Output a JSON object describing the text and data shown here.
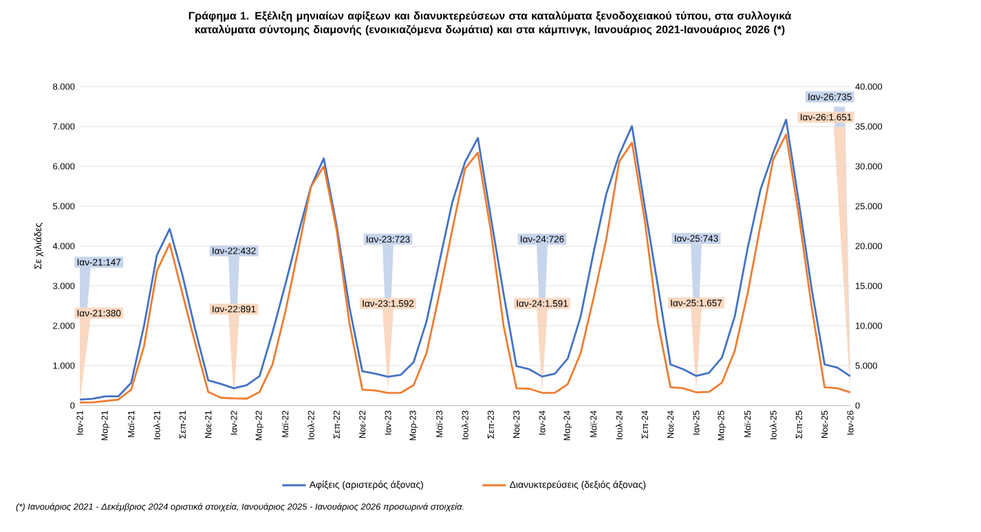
{
  "chart_data": {
    "type": "line",
    "title": "Γράφημα 1. Εξέλιξη μηνιαίων αφίξεων και διανυκτερεύσεων στα καταλύματα ξενοδοχειακού τύπου, στα συλλογικά καταλύματα σύντομης διαμονής (ενοικιαζόμενα δωμάτια) και στα κάμπινγκ, Ιανουάριος 2021-Ιανουάριος 2026 (*)",
    "ylabel": "Σε χιλιάδες",
    "categories": [
      "Ιαν-21",
      null,
      "Μαρ-21",
      null,
      "Μαϊ-21",
      null,
      "Ιουλ-21",
      null,
      "Σεπ-21",
      null,
      "Νοε-21",
      null,
      "Ιαν-22",
      null,
      "Μαρ-22",
      null,
      "Μαϊ-22",
      null,
      "Ιουλ-22",
      null,
      "Σεπ-22",
      null,
      "Νοε-22",
      null,
      "Ιαν-23",
      null,
      "Μαρ-23",
      null,
      "Μαϊ-23",
      null,
      "Ιουλ-23",
      null,
      "Σεπ-23",
      null,
      "Νοε-23",
      null,
      "Ιαν-24",
      null,
      "Μαρ-24",
      null,
      "Μαϊ-24",
      null,
      "Ιουλ-24",
      null,
      "Σεπ-24",
      null,
      "Νοε-24",
      null,
      "Ιαν-25",
      null,
      "Μαρ-25",
      null,
      "Μαϊ-25",
      null,
      "Ιουλ-25",
      null,
      "Σεπ-25",
      null,
      "Νοε-25",
      null,
      "Ιαν-26"
    ],
    "series": [
      {
        "name": "Αφίξεις (αριστερός άξονας)",
        "color": "#4472c4",
        "axis": "y",
        "values": [
          147,
          170,
          230,
          230,
          570,
          2000,
          3770,
          4430,
          3260,
          1890,
          630,
          540,
          432,
          510,
          740,
          1830,
          3030,
          4290,
          5490,
          6200,
          4510,
          2460,
          860,
          800,
          723,
          770,
          1090,
          2110,
          3600,
          5090,
          6110,
          6710,
          4740,
          2800,
          990,
          910,
          726,
          800,
          1180,
          2230,
          3830,
          5310,
          6290,
          7010,
          4970,
          3030,
          1030,
          910,
          743,
          820,
          1200,
          2230,
          3940,
          5410,
          6340,
          7170,
          5090,
          2910,
          1030,
          950,
          735
        ],
        "value_labels": [
          "Ιαν-21:147",
          null,
          null,
          null,
          null,
          null,
          null,
          null,
          null,
          null,
          null,
          null,
          "Ιαν-22:432",
          null,
          null,
          null,
          null,
          null,
          null,
          null,
          null,
          null,
          null,
          null,
          "Ιαν-23:723",
          null,
          null,
          null,
          null,
          null,
          null,
          null,
          null,
          null,
          null,
          null,
          "Ιαν-24:726",
          null,
          null,
          null,
          null,
          null,
          null,
          null,
          null,
          null,
          null,
          null,
          "Ιαν-25:743",
          null,
          null,
          null,
          null,
          null,
          null,
          null,
          null,
          null,
          null,
          null,
          "Ιαν-26:735"
        ]
      },
      {
        "name": "Διανυκτερεύσεις (δεξιός άξονας)",
        "color": "#ed7d31",
        "axis": "y2",
        "values": [
          380,
          400,
          570,
          740,
          2000,
          7430,
          16860,
          20290,
          14000,
          7710,
          1710,
          970,
          891,
          860,
          1710,
          5140,
          11710,
          19430,
          27430,
          30000,
          22000,
          10290,
          2000,
          1890,
          1592,
          1600,
          2570,
          6570,
          14000,
          22000,
          29710,
          31710,
          22000,
          10000,
          2170,
          2110,
          1591,
          1600,
          2690,
          6570,
          13430,
          20860,
          30570,
          32970,
          23140,
          10570,
          2290,
          2170,
          1657,
          1710,
          2860,
          6860,
          14000,
          22570,
          30860,
          34000,
          23710,
          12290,
          2290,
          2170,
          1651
        ],
        "value_labels": [
          "Ιαν-21:380",
          null,
          null,
          null,
          null,
          null,
          null,
          null,
          null,
          null,
          null,
          null,
          "Ιαν-22:891",
          null,
          null,
          null,
          null,
          null,
          null,
          null,
          null,
          null,
          null,
          null,
          "Ιαν-23:1.592",
          null,
          null,
          null,
          null,
          null,
          null,
          null,
          null,
          null,
          null,
          null,
          "Ιαν-24:1.591",
          null,
          null,
          null,
          null,
          null,
          null,
          null,
          null,
          null,
          null,
          null,
          "Ιαν-25:1.657",
          null,
          null,
          null,
          null,
          null,
          null,
          null,
          null,
          null,
          null,
          null,
          "Ιαν-26:1.651"
        ]
      }
    ],
    "ylim": [
      0,
      8000
    ],
    "yticks": [
      {
        "value": 0,
        "label": "0"
      },
      {
        "value": 1000,
        "label": "1.000"
      },
      {
        "value": 2000,
        "label": "2.000"
      },
      {
        "value": 3000,
        "label": "3.000"
      },
      {
        "value": 4000,
        "label": "4.000"
      },
      {
        "value": 5000,
        "label": "5.000"
      },
      {
        "value": 6000,
        "label": "6.000"
      },
      {
        "value": 7000,
        "label": "7.000"
      },
      {
        "value": 8000,
        "label": "8.000"
      }
    ],
    "y2lim": [
      0,
      40000
    ],
    "y2ticks": [
      {
        "value": 0,
        "label": "0"
      },
      {
        "value": 5000,
        "label": "5.000"
      },
      {
        "value": 10000,
        "label": "10.000"
      },
      {
        "value": 15000,
        "label": "15.000"
      },
      {
        "value": 20000,
        "label": "20.000"
      },
      {
        "value": 25000,
        "label": "25.000"
      },
      {
        "value": 30000,
        "label": "30.000"
      },
      {
        "value": 35000,
        "label": "35.000"
      },
      {
        "value": 40000,
        "label": "40.000"
      }
    ],
    "grid": "y",
    "legend": "bottom",
    "annotations": [
      "(*) Ιανουάριος 2021 - Δεκέμβριος 2024 οριστικά στοιχεία, Ιανουάριος 2025 - Ιανουάριος 2026 προσωρινά στοιχεία."
    ]
  }
}
